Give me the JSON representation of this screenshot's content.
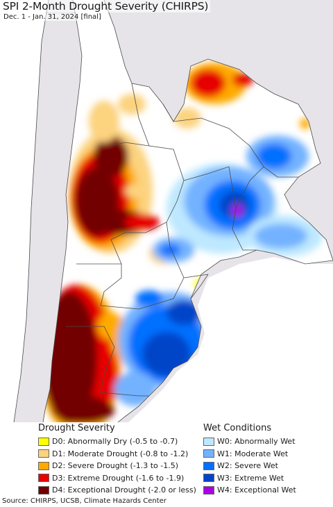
{
  "title": "SPI 2-Month Drought Severity (CHIRPS)",
  "subtitle": "Dec. 1 - Jan. 31, 2024 [final]",
  "colors": {
    "ocean": "#ffffff",
    "outside_land": "#e6e4e9",
    "normal": "#ffffff",
    "border": "#4a4a4a"
  },
  "legend": {
    "drought": {
      "heading": "Drought Severity",
      "items": [
        {
          "label": "D0: Abnormally Dry (-0.5 to -0.7)",
          "color": "#ffff00"
        },
        {
          "label": "D1: Moderate Drought (-0.8 to -1.2)",
          "color": "#fcd37f"
        },
        {
          "label": "D2: Severe Drought (-1.3 to -1.5)",
          "color": "#ffaa00"
        },
        {
          "label": "D3: Extreme Drought (-1.6 to -1.9)",
          "color": "#e60000"
        },
        {
          "label": "D4: Exceptional Drought (-2.0 or less)",
          "color": "#730000"
        }
      ]
    },
    "wet": {
      "heading": "Wet Conditions",
      "items": [
        {
          "label": "W0: Abnormally Wet",
          "color": "#bee8ff"
        },
        {
          "label": "W1: Moderate Wet",
          "color": "#73b2ff"
        },
        {
          "label": "W2: Severe Wet",
          "color": "#0070ff"
        },
        {
          "label": "W3: Extreme Wet",
          "color": "#0045c8"
        },
        {
          "label": "W4: Exceptional Wet",
          "color": "#aa00e6"
        }
      ]
    }
  },
  "source": "Source: CHIRPS, UCSB, Climate Hazards Center"
}
